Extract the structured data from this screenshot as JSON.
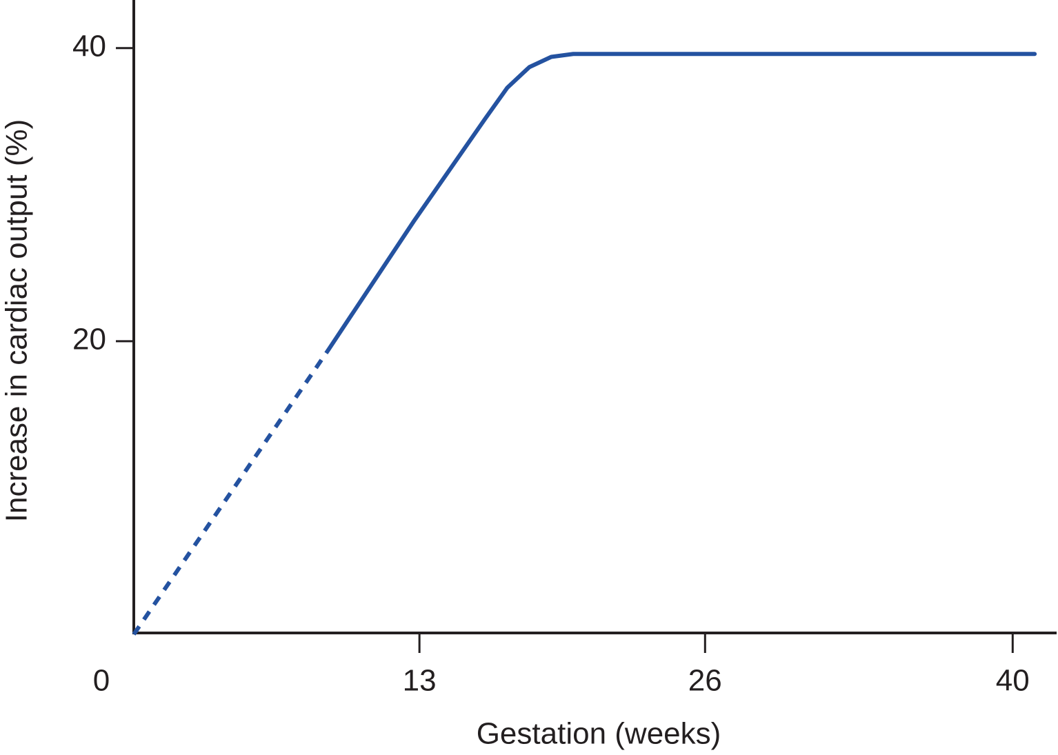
{
  "chart_data": {
    "type": "line",
    "x_label": "Gestation (weeks)",
    "y_label": "Increase in cardiac output (%)",
    "xlim": [
      0,
      42
    ],
    "ylim": [
      0,
      43
    ],
    "xticks": [
      0,
      13,
      26,
      40
    ],
    "yticks": [
      20,
      40
    ],
    "series": [
      {
        "color": "#2452a0",
        "style": "dashed",
        "x": [
          0,
          8.85
        ],
        "values": [
          0,
          19.4
        ]
      },
      {
        "color": "#2452a0",
        "style": "solid",
        "x": [
          8.85,
          12.75,
          16,
          17,
          18,
          19,
          20,
          41
        ],
        "values": [
          19.4,
          28.2,
          35.2,
          37.3,
          38.7,
          39.4,
          39.6,
          39.6
        ]
      }
    ]
  }
}
